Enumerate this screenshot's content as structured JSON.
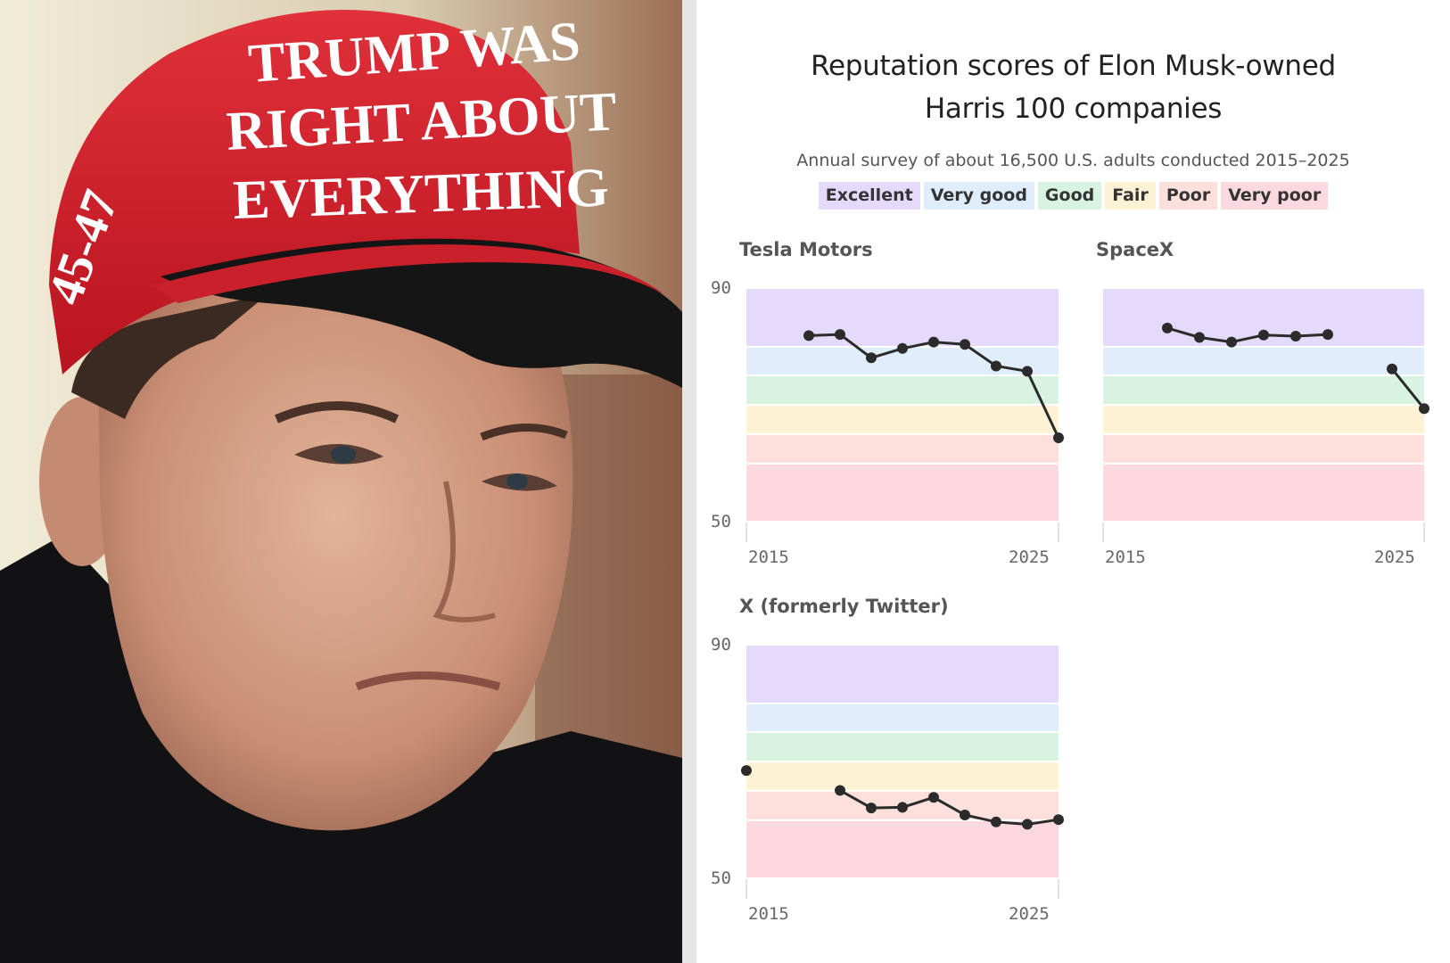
{
  "photo": {
    "hat_lines": [
      "TRUMP WAS",
      "RIGHT ABOUT",
      "EVERYTHING"
    ],
    "hat_side": "45-47"
  },
  "header": {
    "title_line1": "Reputation scores of Elon Musk-owned",
    "title_line2": "Harris 100 companies",
    "subtitle": "Annual survey of about 16,500 U.S. adults conducted 2015–2025"
  },
  "legend": [
    {
      "label": "Excellent",
      "color": "#e4dafb"
    },
    {
      "label": "Very good",
      "color": "#e0eefb"
    },
    {
      "label": "Good",
      "color": "#d8f3e1"
    },
    {
      "label": "Fair",
      "color": "#fdf2d4"
    },
    {
      "label": "Poor",
      "color": "#fde0dc"
    },
    {
      "label": "Very poor",
      "color": "#fcd9df"
    }
  ],
  "chart_data": [
    {
      "type": "line",
      "title": "Tesla Motors",
      "xlim": [
        2015,
        2025
      ],
      "ylim": [
        50,
        90
      ],
      "x_ticks": [
        "2015",
        "2025"
      ],
      "y_ticks": [
        "90",
        "50"
      ],
      "bands": [
        {
          "label": "Excellent",
          "from": 80,
          "to": 90
        },
        {
          "label": "Very good",
          "from": 75,
          "to": 80
        },
        {
          "label": "Good",
          "from": 70,
          "to": 75
        },
        {
          "label": "Fair",
          "from": 65,
          "to": 70
        },
        {
          "label": "Poor",
          "from": 60,
          "to": 65
        },
        {
          "label": "Very poor",
          "from": 50,
          "to": 60
        }
      ],
      "series": [
        {
          "segments": [
            [
              [
                2017,
                82.0
              ],
              [
                2018,
                82.2
              ],
              [
                2019,
                78.2
              ],
              [
                2020,
                79.8
              ],
              [
                2021,
                80.9
              ],
              [
                2022,
                80.5
              ],
              [
                2023,
                76.8
              ],
              [
                2024,
                75.9
              ],
              [
                2025,
                64.5
              ]
            ]
          ]
        }
      ]
    },
    {
      "type": "line",
      "title": "SpaceX",
      "xlim": [
        2015,
        2025
      ],
      "ylim": [
        50,
        90
      ],
      "x_ticks": [
        "2015",
        "2025"
      ],
      "y_ticks": [],
      "bands": [
        {
          "label": "Excellent",
          "from": 80,
          "to": 90
        },
        {
          "label": "Very good",
          "from": 75,
          "to": 80
        },
        {
          "label": "Good",
          "from": 70,
          "to": 75
        },
        {
          "label": "Fair",
          "from": 65,
          "to": 70
        },
        {
          "label": "Poor",
          "from": 60,
          "to": 65
        },
        {
          "label": "Very poor",
          "from": 50,
          "to": 60
        }
      ],
      "series": [
        {
          "segments": [
            [
              [
                2017,
                83.3
              ],
              [
                2018,
                81.7
              ],
              [
                2019,
                80.9
              ],
              [
                2020,
                82.1
              ],
              [
                2021,
                81.9
              ],
              [
                2022,
                82.2
              ]
            ],
            [
              [
                2024,
                76.3
              ],
              [
                2025,
                69.5
              ]
            ]
          ]
        }
      ]
    },
    {
      "type": "line",
      "title": "X (formerly Twitter)",
      "xlim": [
        2015,
        2025
      ],
      "ylim": [
        50,
        90
      ],
      "x_ticks": [
        "2015",
        "2025"
      ],
      "y_ticks": [
        "90",
        "50"
      ],
      "bands": [
        {
          "label": "Excellent",
          "from": 80,
          "to": 90
        },
        {
          "label": "Very good",
          "from": 75,
          "to": 80
        },
        {
          "label": "Good",
          "from": 70,
          "to": 75
        },
        {
          "label": "Fair",
          "from": 65,
          "to": 70
        },
        {
          "label": "Poor",
          "from": 60,
          "to": 65
        },
        {
          "label": "Very poor",
          "from": 50,
          "to": 60
        }
      ],
      "series": [
        {
          "segments": [
            [
              [
                2015,
                68.6
              ]
            ],
            [
              [
                2018,
                65.2
              ],
              [
                2019,
                62.2
              ],
              [
                2020,
                62.3
              ],
              [
                2021,
                64.0
              ],
              [
                2022,
                61.0
              ],
              [
                2023,
                59.8
              ],
              [
                2024,
                59.4
              ],
              [
                2025,
                60.2
              ]
            ]
          ]
        }
      ]
    }
  ]
}
